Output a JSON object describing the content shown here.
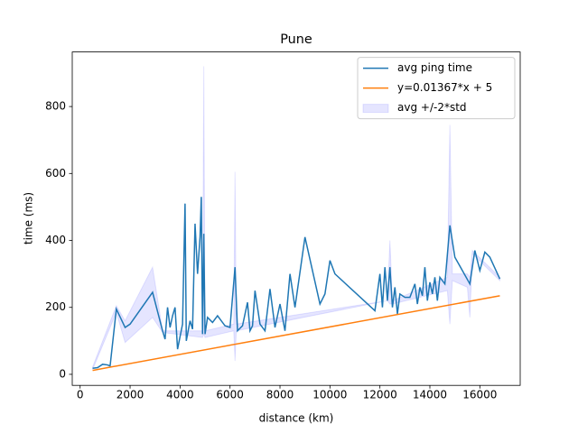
{
  "chart_data": {
    "type": "line",
    "title": "Pune",
    "xlabel": "distance (km)",
    "ylabel": "time (ms)",
    "xlim": [
      -315,
      17615
    ],
    "ylim": [
      -33,
      963
    ],
    "xticks": [
      0,
      2000,
      4000,
      6000,
      8000,
      10000,
      12000,
      14000,
      16000
    ],
    "yticks": [
      0,
      200,
      400,
      600,
      800
    ],
    "legend": "upper right",
    "series": [
      {
        "name": "avg ping time",
        "color": "#1f77b4",
        "kind": "line",
        "x": [
          500,
          700,
          900,
          1100,
          1200,
          1450,
          1800,
          2000,
          2900,
          3300,
          3400,
          3500,
          3600,
          3700,
          3800,
          3900,
          4100,
          4200,
          4250,
          4400,
          4500,
          4600,
          4700,
          4800,
          4850,
          4900,
          4950,
          5000,
          5100,
          5300,
          5500,
          5800,
          6000,
          6200,
          6300,
          6500,
          6700,
          6800,
          6900,
          7000,
          7200,
          7400,
          7600,
          7800,
          8000,
          8200,
          8400,
          8600,
          9000,
          9600,
          9800,
          10000,
          10200,
          11800,
          12000,
          12100,
          12200,
          12300,
          12400,
          12500,
          12600,
          12700,
          12800,
          13000,
          13200,
          13400,
          13500,
          13600,
          13700,
          13800,
          13900,
          14000,
          14100,
          14200,
          14300,
          14400,
          14600,
          14800,
          15000,
          15600,
          15800,
          16000,
          16200,
          16400,
          16800
        ],
        "values": [
          18,
          20,
          30,
          28,
          25,
          195,
          140,
          150,
          245,
          130,
          105,
          200,
          140,
          175,
          200,
          75,
          150,
          510,
          100,
          160,
          135,
          450,
          300,
          410,
          530,
          120,
          420,
          120,
          170,
          155,
          175,
          145,
          140,
          320,
          130,
          145,
          215,
          130,
          145,
          250,
          150,
          130,
          255,
          140,
          210,
          130,
          300,
          200,
          410,
          210,
          240,
          340,
          300,
          190,
          300,
          200,
          320,
          220,
          320,
          200,
          260,
          180,
          240,
          230,
          230,
          270,
          210,
          260,
          235,
          320,
          220,
          275,
          240,
          290,
          220,
          290,
          270,
          445,
          350,
          270,
          370,
          310,
          365,
          350,
          285
        ]
      },
      {
        "name": "y=0.01367*x + 5",
        "color": "#ff7f0e",
        "kind": "line",
        "x": [
          500,
          16800
        ],
        "values": [
          11.8,
          234.7
        ]
      },
      {
        "name": "avg +/-2*std",
        "color": "#0000ff",
        "kind": "band",
        "x": [
          500,
          1450,
          1800,
          2900,
          3300,
          4900,
          4950,
          5000,
          6150,
          6200,
          6250,
          12300,
          12400,
          12500,
          14700,
          14800,
          14900,
          15500,
          15600,
          15700,
          16800
        ],
        "upper": [
          22,
          205,
          160,
          320,
          130,
          130,
          920,
          130,
          150,
          605,
          150,
          220,
          400,
          220,
          290,
          745,
          300,
          300,
          290,
          370,
          290
        ],
        "lower": [
          14,
          185,
          95,
          170,
          125,
          110,
          120,
          110,
          130,
          40,
          130,
          220,
          210,
          210,
          250,
          150,
          280,
          260,
          170,
          360,
          280
        ]
      }
    ]
  }
}
